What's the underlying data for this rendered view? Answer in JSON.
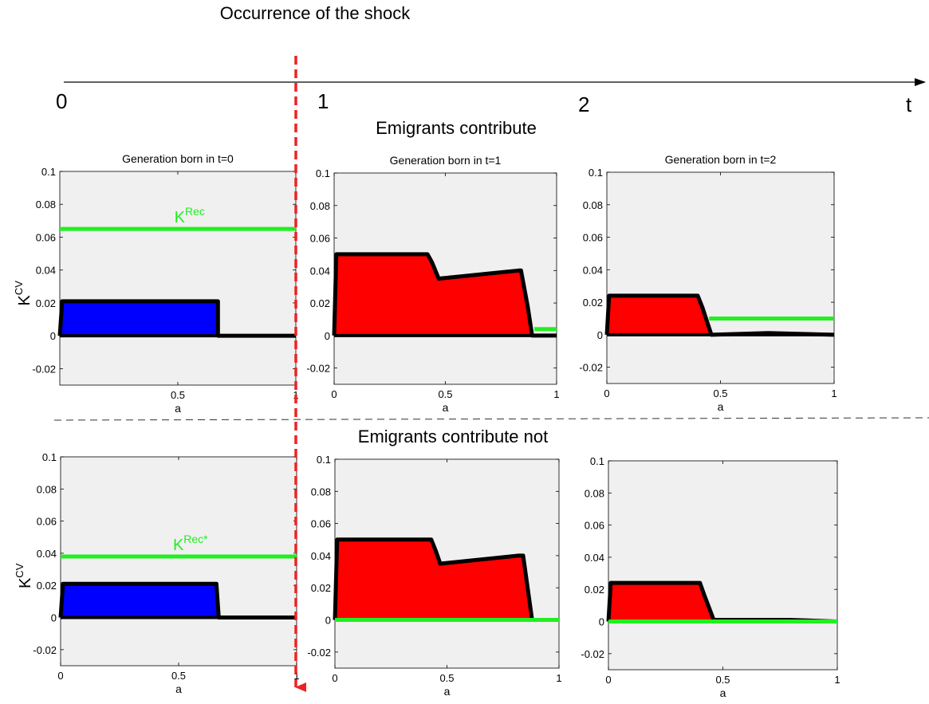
{
  "timeline": {
    "title": "Occurrence of the shock",
    "ticks": [
      "0",
      "1",
      "2"
    ],
    "end_label": "t",
    "shock_marker_color": "#ee2222"
  },
  "sections": [
    {
      "title": "Emigrants contribute"
    },
    {
      "title": "Emigrants contribute not"
    }
  ],
  "colors": {
    "panel_bg": "#f0f0f0",
    "blue": "#0000ff",
    "red": "#ff0000",
    "green": "#22ee22",
    "outline": "#000000"
  },
  "chart_data": [
    {
      "id": "top-t0",
      "type": "area",
      "title": "Generation born in t=0",
      "xlabel": "a",
      "ylabel": "K",
      "ylabel_sup": "CV",
      "xlim": [
        0,
        1
      ],
      "ylim": [
        -0.03,
        0.1
      ],
      "xticks": [
        "0.5",
        "1"
      ],
      "yticks": [
        "0.1",
        "0.08",
        "0.06",
        "0.04",
        "0.02",
        "0",
        "-0.02"
      ],
      "fill": "blue",
      "x": [
        0,
        0.01,
        0.67,
        0.67,
        1
      ],
      "y": [
        0,
        0.021,
        0.021,
        0,
        0
      ],
      "line_value": 0.065,
      "line_range": [
        0,
        1
      ],
      "line_label": "K",
      "line_label_sup": "Rec"
    },
    {
      "id": "top-t1",
      "type": "area",
      "title": "Generation born in t=1",
      "xlabel": "a",
      "ylabel": "",
      "ylabel_sup": "",
      "xlim": [
        0,
        1
      ],
      "ylim": [
        -0.03,
        0.1
      ],
      "xticks": [
        "0",
        "0.5",
        "1"
      ],
      "yticks": [
        "0.1",
        "0.08",
        "0.06",
        "0.04",
        "0.02",
        "0",
        "-0.02"
      ],
      "fill": "red",
      "x": [
        0,
        0.01,
        0.42,
        0.44,
        0.47,
        0.83,
        0.84,
        0.87,
        0.89,
        1
      ],
      "y": [
        0,
        0.05,
        0.05,
        0.045,
        0.035,
        0.04,
        0.04,
        0.018,
        0,
        0
      ],
      "line_value": 0.004,
      "line_range": [
        0.9,
        1
      ],
      "line_label": "",
      "line_label_sup": ""
    },
    {
      "id": "top-t2",
      "type": "area",
      "title": "Generation born in t=2",
      "xlabel": "a",
      "ylabel": "",
      "ylabel_sup": "",
      "xlim": [
        0,
        1
      ],
      "ylim": [
        -0.03,
        0.1
      ],
      "xticks": [
        "0",
        "0.5",
        "1"
      ],
      "yticks": [
        "0.1",
        "0.08",
        "0.06",
        "0.04",
        "0.02",
        "0",
        "-0.02"
      ],
      "fill": "red",
      "x": [
        0,
        0.01,
        0.4,
        0.42,
        0.46,
        0.71,
        1
      ],
      "y": [
        0,
        0.024,
        0.024,
        0.017,
        0,
        0.001,
        0
      ],
      "line_value": 0.01,
      "line_range": [
        0.45,
        1
      ],
      "line_label": "",
      "line_label_sup": ""
    },
    {
      "id": "bot-t0",
      "type": "area",
      "title": "",
      "xlabel": "a",
      "ylabel": "K",
      "ylabel_sup": "CV",
      "xlim": [
        0,
        1
      ],
      "ylim": [
        -0.03,
        0.1
      ],
      "xticks": [
        "0",
        "0.5",
        "1"
      ],
      "yticks": [
        "0.1",
        "0.08",
        "0.06",
        "0.04",
        "0.02",
        "0",
        "-0.02"
      ],
      "fill": "blue",
      "x": [
        0,
        0.01,
        0.66,
        0.67,
        1
      ],
      "y": [
        0,
        0.021,
        0.021,
        0,
        0
      ],
      "line_value": 0.038,
      "line_range": [
        0,
        1
      ],
      "line_label": "K",
      "line_label_sup": "Rec*"
    },
    {
      "id": "bot-t1",
      "type": "area",
      "title": "",
      "xlabel": "a",
      "ylabel": "",
      "ylabel_sup": "",
      "xlim": [
        0,
        1
      ],
      "ylim": [
        -0.03,
        0.1
      ],
      "xticks": [
        "0",
        "0.5",
        "1"
      ],
      "yticks": [
        "0.1",
        "0.08",
        "0.06",
        "0.04",
        "0.02",
        "0",
        "-0.02"
      ],
      "fill": "red",
      "x": [
        0,
        0.01,
        0.43,
        0.45,
        0.47,
        0.82,
        0.84,
        0.86,
        0.88,
        1
      ],
      "y": [
        0,
        0.05,
        0.05,
        0.043,
        0.035,
        0.04,
        0.04,
        0.02,
        0,
        0
      ],
      "line_value": 0,
      "line_range": [
        0,
        1
      ],
      "line_label": "",
      "line_label_sup": ""
    },
    {
      "id": "bot-t2",
      "type": "area",
      "title": "",
      "xlabel": "a",
      "ylabel": "",
      "ylabel_sup": "",
      "xlim": [
        0,
        1
      ],
      "ylim": [
        -0.03,
        0.1
      ],
      "xticks": [
        "0",
        "0.5",
        "1"
      ],
      "yticks": [
        "0.1",
        "0.08",
        "0.06",
        "0.04",
        "0.02",
        "0",
        "-0.02"
      ],
      "fill": "red",
      "x": [
        0,
        0.01,
        0.4,
        0.42,
        0.46,
        0.79,
        1
      ],
      "y": [
        0,
        0.024,
        0.024,
        0.016,
        0.001,
        0.001,
        0
      ],
      "line_value": 0,
      "line_range": [
        0,
        1
      ],
      "line_label": "",
      "line_label_sup": ""
    }
  ]
}
